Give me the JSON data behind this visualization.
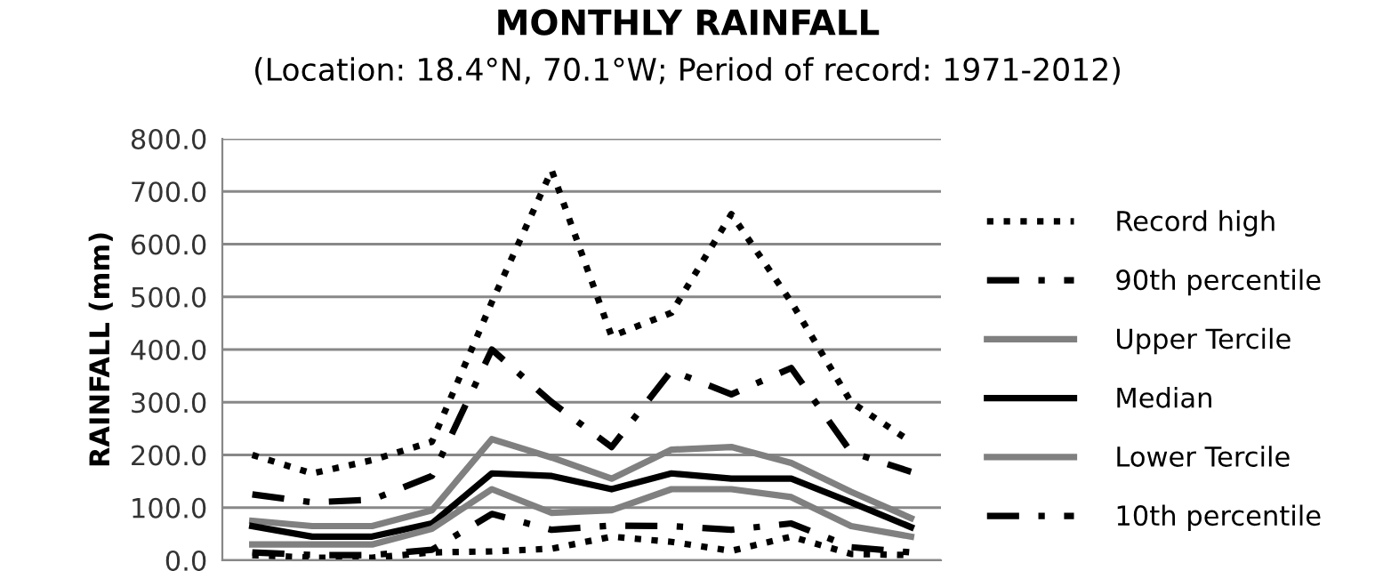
{
  "chart_data": {
    "type": "line",
    "title": "MONTHLY RAINFALL",
    "subtitle": "(Location: 18.4°N, 70.1°W; Period of record: 1971-2012)",
    "ylabel": "RAINFALL (mm)",
    "categories": [
      null,
      null,
      null,
      null,
      null,
      null,
      null,
      null,
      null,
      null,
      null,
      null
    ],
    "ylim": [
      0,
      800
    ],
    "yticks": [
      {
        "value": 0,
        "label": "0.0"
      },
      {
        "value": 100,
        "label": "100.0"
      },
      {
        "value": 200,
        "label": "200.0"
      },
      {
        "value": 300,
        "label": "300.0"
      },
      {
        "value": 400,
        "label": "400.0"
      },
      {
        "value": 500,
        "label": "500.0"
      },
      {
        "value": 600,
        "label": "600.0"
      },
      {
        "value": 700,
        "label": "700.0"
      },
      {
        "value": 800,
        "label": "800.0"
      }
    ],
    "grid": "y",
    "legend": "right",
    "marker": "none",
    "tick_labels": "y",
    "series": [
      {
        "name": "Record high",
        "color": "#000000",
        "line_style": "dotted",
        "values": [
          200,
          165,
          190,
          225,
          490,
          740,
          425,
          470,
          657,
          490,
          300,
          225
        ]
      },
      {
        "name": "90th percentile",
        "color": "#000000",
        "line_style": "dashdot",
        "values": [
          125,
          110,
          115,
          160,
          400,
          300,
          215,
          360,
          315,
          365,
          205,
          168
        ]
      },
      {
        "name": "Upper Tercile",
        "color": "#808080",
        "line_style": "solid",
        "values": [
          75,
          65,
          65,
          95,
          230,
          195,
          155,
          210,
          215,
          185,
          130,
          80
        ]
      },
      {
        "name": "Median",
        "color": "#000000",
        "line_style": "solid",
        "values": [
          65,
          45,
          45,
          70,
          165,
          160,
          135,
          165,
          155,
          155,
          110,
          63
        ]
      },
      {
        "name": "Lower Tercile",
        "color": "#808080",
        "line_style": "solid",
        "values": [
          30,
          30,
          30,
          60,
          135,
          90,
          95,
          135,
          135,
          120,
          65,
          45
        ]
      },
      {
        "name": "10th percentile",
        "color": "#000000",
        "line_style": "dashdot",
        "values": [
          15,
          10,
          10,
          20,
          88,
          58,
          66,
          65,
          58,
          70,
          25,
          15
        ]
      },
      {
        "color": "#000000",
        "line_style": "dotted",
        "values": [
          10,
          5,
          5,
          15,
          17,
          22,
          45,
          35,
          18,
          45,
          12,
          10
        ]
      }
    ]
  }
}
